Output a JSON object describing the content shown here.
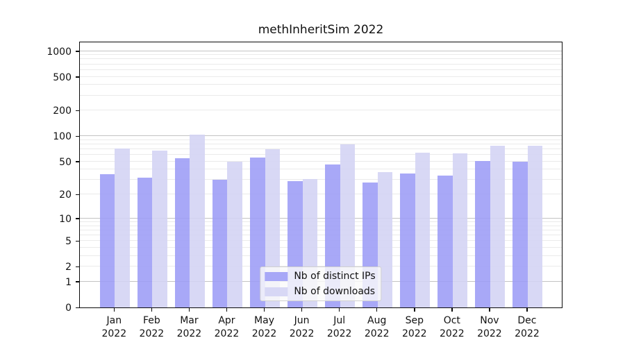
{
  "chart_data": {
    "type": "bar",
    "title": "methInheritSim 2022",
    "categories": [
      "Jan 2022",
      "Feb 2022",
      "Mar 2022",
      "Apr 2022",
      "May 2022",
      "Jun 2022",
      "Jul 2022",
      "Aug 2022",
      "Sep 2022",
      "Oct 2022",
      "Nov 2022",
      "Dec 2022"
    ],
    "x_tick_months": [
      "Jan",
      "Feb",
      "Mar",
      "Apr",
      "May",
      "Jun",
      "Jul",
      "Aug",
      "Sep",
      "Oct",
      "Nov",
      "Dec"
    ],
    "x_tick_year": "2022",
    "series": [
      {
        "name": "Nb of distinct IPs",
        "color": "#9c9cf6",
        "values": [
          35,
          32,
          55,
          30,
          56,
          29,
          46,
          28,
          36,
          34,
          51,
          50
        ]
      },
      {
        "name": "Nb of downloads",
        "color": "#d3d3f4",
        "values": [
          72,
          67,
          105,
          50,
          70,
          31,
          80,
          37,
          64,
          63,
          77,
          77
        ]
      }
    ],
    "y_ticks": [
      0,
      1,
      2,
      5,
      10,
      20,
      50,
      100,
      200,
      500,
      1000
    ],
    "y_scale": "log1p",
    "ylim": [
      0,
      1280
    ],
    "grid": true,
    "legend_position": "lower center",
    "bar_opacity": 0.88,
    "colors": {
      "axis": "#0a0a0a",
      "major_grid": "#c2c2c2",
      "minor_grid": "#eaeaea",
      "legend_border": "#d0d0d0"
    }
  }
}
